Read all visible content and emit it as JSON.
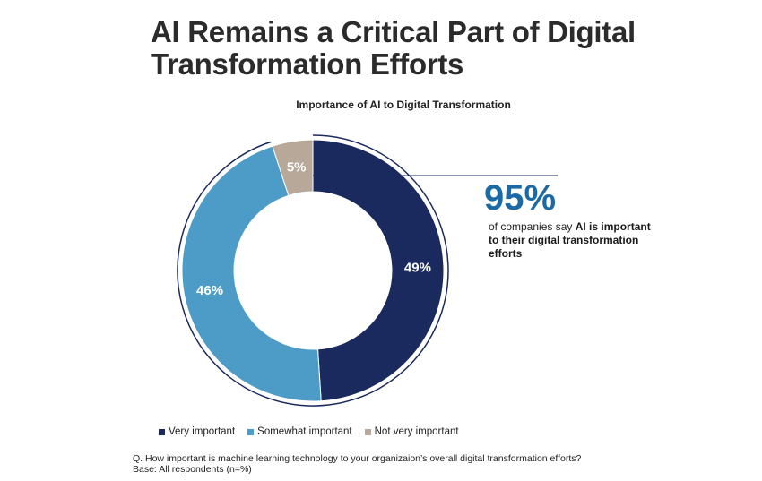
{
  "header": {
    "title_line1": "AI Remains a Critical Part of Digital",
    "title_line2": "Transformation Efforts"
  },
  "callout": {
    "value": "95%",
    "text_prefix": "of companies say ",
    "text_bold": "AI is important to their digital transformation efforts"
  },
  "footnote": {
    "question": "Q. How important is machine learning technology to your organizaion’s overall digital transformation efforts?",
    "base": "Base: All respondents (n=%)"
  },
  "colors": {
    "very_important": "#1b2a5e",
    "somewhat_important": "#4d9cc7",
    "not_very_important": "#b8a89a",
    "callout": "#1c6aa5"
  },
  "chart_data": {
    "type": "pie",
    "title": "Importance of AI to Digital Transformation",
    "donut": true,
    "legend_position": "bottom",
    "slices": [
      {
        "name": "Very important",
        "value": 49,
        "label": "49%"
      },
      {
        "name": "Somewhat important",
        "value": 46,
        "label": "46%"
      },
      {
        "name": "Not very important",
        "value": 5,
        "label": "5%"
      }
    ]
  }
}
